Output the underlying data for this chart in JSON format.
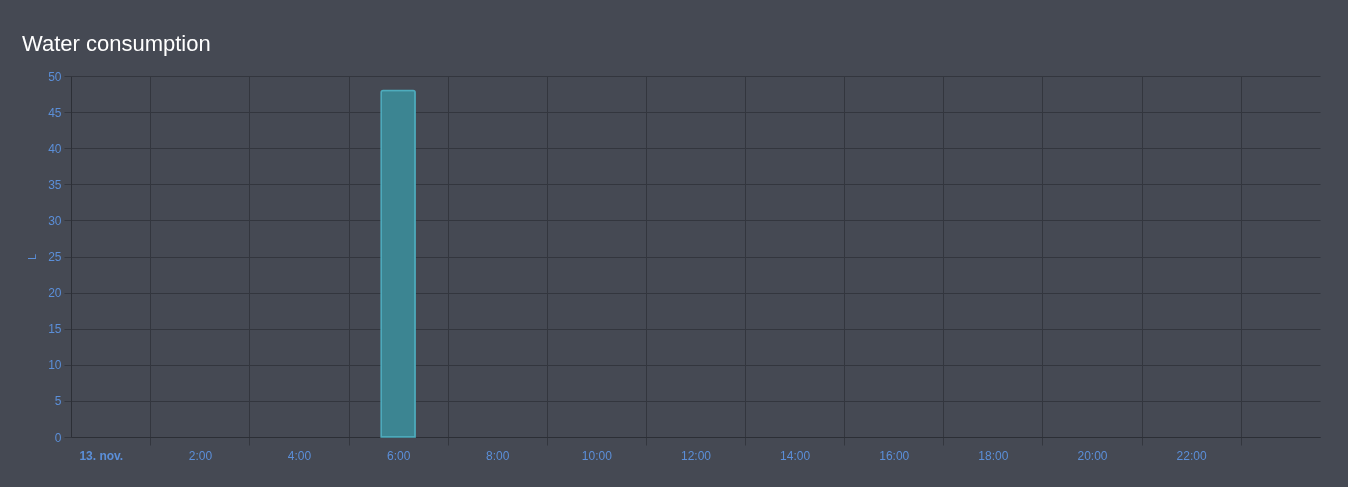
{
  "chart_data": {
    "type": "bar",
    "title": "Water consumption",
    "ylabel": "L",
    "x": [
      6
    ],
    "values": [
      48
    ],
    "color": "#3c8592",
    "xlim": [
      -0.5,
      24.5
    ],
    "xticks": [
      {
        "value": 0,
        "label": "13. nov."
      },
      {
        "value": 1,
        "label": null
      },
      {
        "value": 2,
        "label": "2:00"
      },
      {
        "value": 3,
        "label": null
      },
      {
        "value": 4,
        "label": "4:00"
      },
      {
        "value": 5,
        "label": null
      },
      {
        "value": 6,
        "label": "6:00"
      },
      {
        "value": 7,
        "label": null
      },
      {
        "value": 8,
        "label": "8:00"
      },
      {
        "value": 9,
        "label": null
      },
      {
        "value": 10,
        "label": "10:00"
      },
      {
        "value": 11,
        "label": null
      },
      {
        "value": 12,
        "label": "12:00"
      },
      {
        "value": 13,
        "label": null
      },
      {
        "value": 14,
        "label": "14:00"
      },
      {
        "value": 15,
        "label": null
      },
      {
        "value": 16,
        "label": "16:00"
      },
      {
        "value": 17,
        "label": null
      },
      {
        "value": 18,
        "label": "18:00"
      },
      {
        "value": 19,
        "label": null
      },
      {
        "value": 20,
        "label": "20:00"
      },
      {
        "value": 21,
        "label": null
      },
      {
        "value": 22,
        "label": "22:00"
      },
      {
        "value": 23,
        "label": null
      }
    ],
    "ylim": [
      0,
      50
    ],
    "yticks": [
      0,
      5,
      10,
      15,
      20,
      25,
      30,
      35,
      40,
      45,
      50
    ],
    "grid": true
  }
}
